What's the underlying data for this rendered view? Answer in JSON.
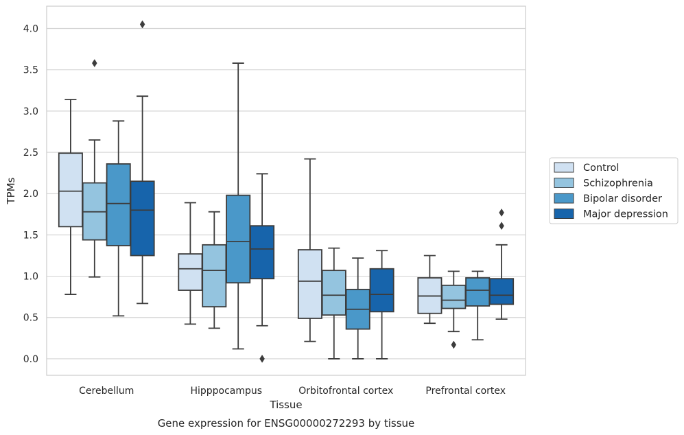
{
  "chart_data": {
    "type": "boxplot",
    "xlabel": "Tissue",
    "ylabel": "TPMs",
    "caption": "Gene expression for ENSG00000272293 by tissue",
    "ylim": [
      -0.2,
      4.27
    ],
    "yticks": [
      "0.0",
      "0.5",
      "1.0",
      "1.5",
      "2.0",
      "2.5",
      "3.0",
      "3.5",
      "4.0"
    ],
    "grid": "horizontal",
    "legend_position": "right",
    "categories": [
      "Cerebellum",
      "Hipppocampus",
      "Orbitofrontal cortex",
      "Prefrontal cortex"
    ],
    "series": [
      {
        "name": "Control",
        "color": "#d0e1f2",
        "boxes": [
          {
            "whislo": 0.78,
            "q1": 1.6,
            "med": 2.03,
            "q3": 2.49,
            "whishi": 3.14,
            "fliers": []
          },
          {
            "whislo": 0.42,
            "q1": 0.83,
            "med": 1.09,
            "q3": 1.27,
            "whishi": 1.89,
            "fliers": []
          },
          {
            "whislo": 0.21,
            "q1": 0.49,
            "med": 0.94,
            "q3": 1.32,
            "whishi": 2.42,
            "fliers": []
          },
          {
            "whislo": 0.43,
            "q1": 0.55,
            "med": 0.76,
            "q3": 0.98,
            "whishi": 1.25,
            "fliers": []
          }
        ]
      },
      {
        "name": "Schizophrenia",
        "color": "#94c4df",
        "boxes": [
          {
            "whislo": 0.99,
            "q1": 1.44,
            "med": 1.78,
            "q3": 2.13,
            "whishi": 2.65,
            "fliers": [
              3.58
            ]
          },
          {
            "whislo": 0.37,
            "q1": 0.63,
            "med": 1.07,
            "q3": 1.38,
            "whishi": 1.78,
            "fliers": []
          },
          {
            "whislo": 0.0,
            "q1": 0.53,
            "med": 0.77,
            "q3": 1.07,
            "whishi": 1.34,
            "fliers": []
          },
          {
            "whislo": 0.33,
            "q1": 0.61,
            "med": 0.71,
            "q3": 0.89,
            "whishi": 1.06,
            "fliers": [
              0.17
            ]
          }
        ]
      },
      {
        "name": "Bipolar disorder",
        "color": "#4a98c9",
        "boxes": [
          {
            "whislo": 0.52,
            "q1": 1.37,
            "med": 1.88,
            "q3": 2.36,
            "whishi": 2.88,
            "fliers": []
          },
          {
            "whislo": 0.12,
            "q1": 0.92,
            "med": 1.42,
            "q3": 1.98,
            "whishi": 3.58,
            "fliers": []
          },
          {
            "whislo": 0.0,
            "q1": 0.36,
            "med": 0.6,
            "q3": 0.84,
            "whishi": 1.22,
            "fliers": []
          },
          {
            "whislo": 0.23,
            "q1": 0.64,
            "med": 0.83,
            "q3": 0.98,
            "whishi": 1.06,
            "fliers": []
          }
        ]
      },
      {
        "name": "Major depression",
        "color": "#1764ab",
        "boxes": [
          {
            "whislo": 0.67,
            "q1": 1.25,
            "med": 1.8,
            "q3": 2.15,
            "whishi": 3.18,
            "fliers": [
              4.05
            ]
          },
          {
            "whislo": 0.4,
            "q1": 0.97,
            "med": 1.33,
            "q3": 1.61,
            "whishi": 2.24,
            "fliers": [
              0.0
            ]
          },
          {
            "whislo": 0.0,
            "q1": 0.57,
            "med": 0.78,
            "q3": 1.09,
            "whishi": 1.31,
            "fliers": []
          },
          {
            "whislo": 0.48,
            "q1": 0.66,
            "med": 0.77,
            "q3": 0.97,
            "whishi": 1.38,
            "fliers": [
              1.77,
              1.61
            ]
          }
        ]
      }
    ]
  }
}
